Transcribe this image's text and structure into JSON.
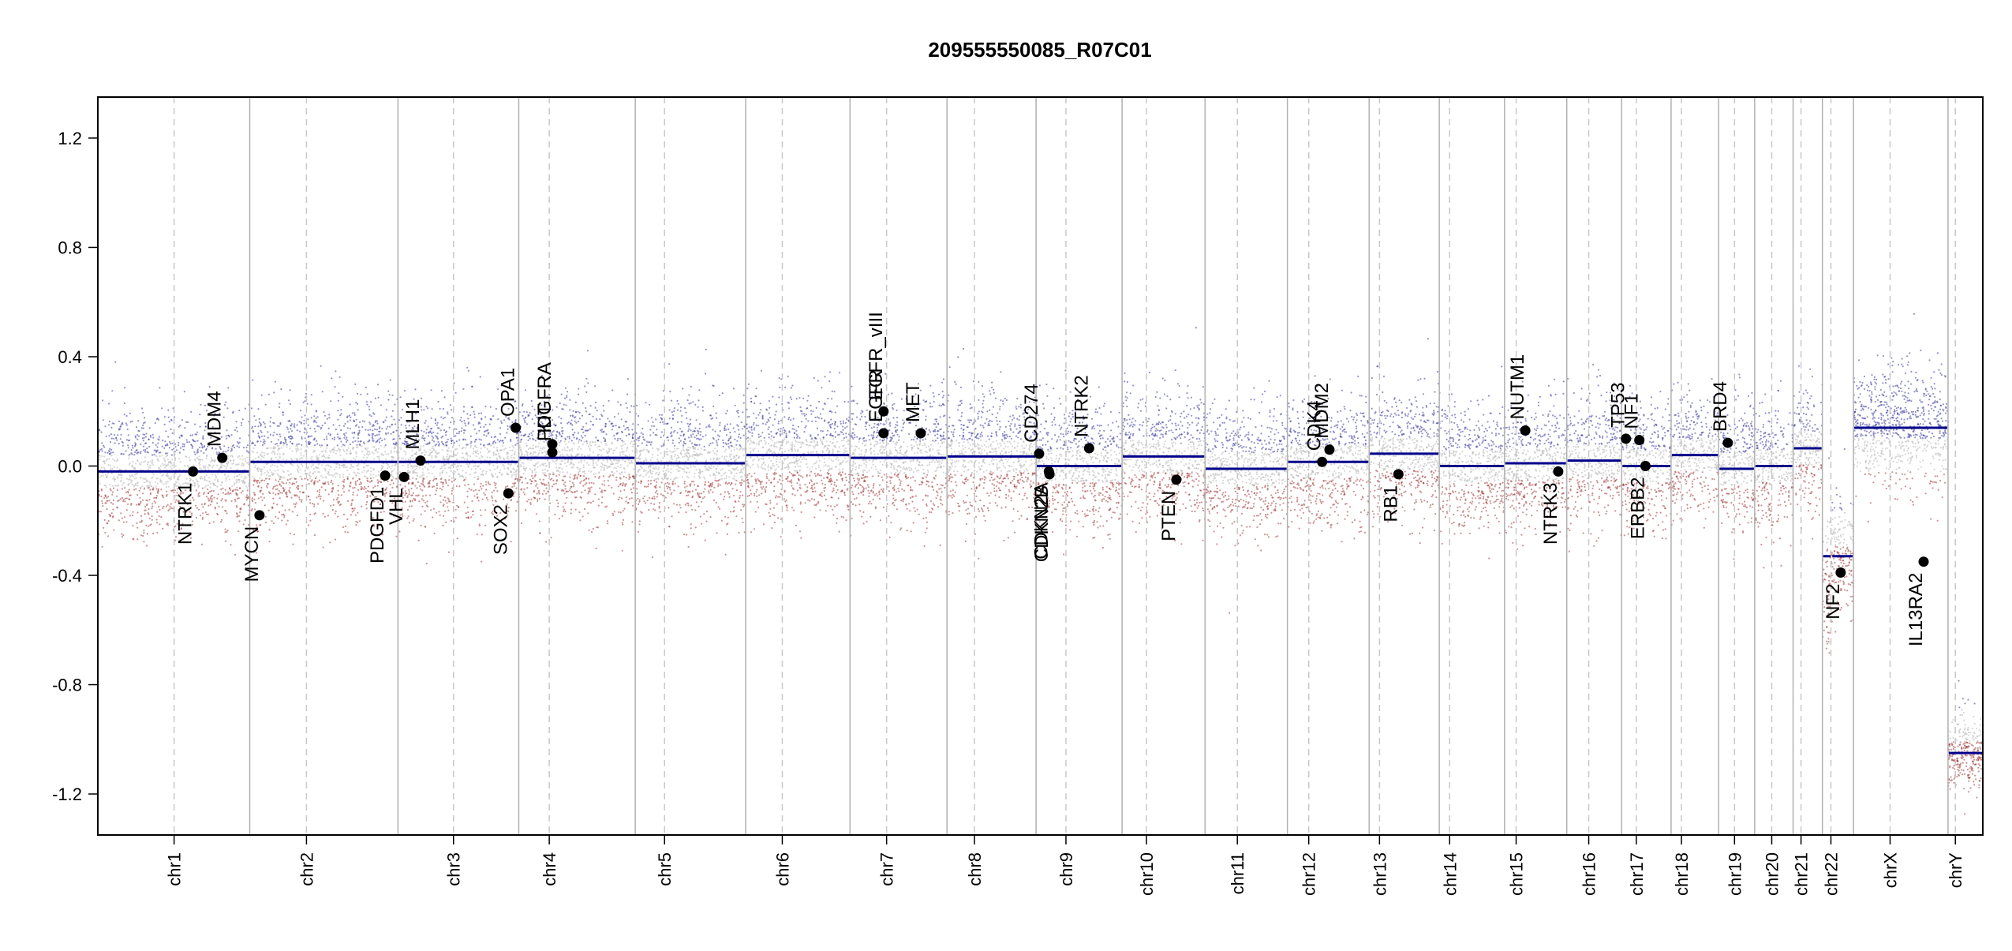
{
  "chart_data": {
    "type": "scatter",
    "title": "209555550085_R07C01",
    "xlabel": "",
    "ylabel": "",
    "ylim": [
      -1.35,
      1.35
    ],
    "y_ticks": [
      1.2,
      0.8,
      0.4,
      0.0,
      -0.4,
      -0.8,
      -1.2
    ],
    "y_tick_labels": [
      "1.2",
      "0.8",
      "0.4",
      "0.0",
      "-0.4",
      "-0.8",
      "-1.2"
    ],
    "chromosomes": [
      {
        "name": "chr1",
        "length": 249
      },
      {
        "name": "chr2",
        "length": 243
      },
      {
        "name": "chr3",
        "length": 198
      },
      {
        "name": "chr4",
        "length": 191
      },
      {
        "name": "chr5",
        "length": 181
      },
      {
        "name": "chr6",
        "length": 171
      },
      {
        "name": "chr7",
        "length": 159
      },
      {
        "name": "chr8",
        "length": 146
      },
      {
        "name": "chr9",
        "length": 141
      },
      {
        "name": "chr10",
        "length": 136
      },
      {
        "name": "chr11",
        "length": 135
      },
      {
        "name": "chr12",
        "length": 134
      },
      {
        "name": "chr13",
        "length": 115
      },
      {
        "name": "chr14",
        "length": 107
      },
      {
        "name": "chr15",
        "length": 102
      },
      {
        "name": "chr16",
        "length": 90
      },
      {
        "name": "chr17",
        "length": 81
      },
      {
        "name": "chr18",
        "length": 78
      },
      {
        "name": "chr19",
        "length": 59
      },
      {
        "name": "chr20",
        "length": 63
      },
      {
        "name": "chr21",
        "length": 48
      },
      {
        "name": "chr22",
        "length": 51
      },
      {
        "name": "chrX",
        "length": 155
      },
      {
        "name": "chrY",
        "length": 57
      }
    ],
    "centromeres": [
      {
        "chr": "chr1",
        "pos": 125
      },
      {
        "chr": "chr2",
        "pos": 93
      },
      {
        "chr": "chr3",
        "pos": 91
      },
      {
        "chr": "chr4",
        "pos": 50
      },
      {
        "chr": "chr5",
        "pos": 48
      },
      {
        "chr": "chr6",
        "pos": 60
      },
      {
        "chr": "chr7",
        "pos": 60
      },
      {
        "chr": "chr8",
        "pos": 45
      },
      {
        "chr": "chr9",
        "pos": 49
      },
      {
        "chr": "chr10",
        "pos": 40
      },
      {
        "chr": "chr11",
        "pos": 53
      },
      {
        "chr": "chr12",
        "pos": 35
      },
      {
        "chr": "chr13",
        "pos": 17
      },
      {
        "chr": "chr14",
        "pos": 17
      },
      {
        "chr": "chr15",
        "pos": 19
      },
      {
        "chr": "chr16",
        "pos": 36
      },
      {
        "chr": "chr17",
        "pos": 24
      },
      {
        "chr": "chr18",
        "pos": 17
      },
      {
        "chr": "chr19",
        "pos": 26
      },
      {
        "chr": "chr20",
        "pos": 28
      },
      {
        "chr": "chr21",
        "pos": 13
      },
      {
        "chr": "chr22",
        "pos": 14
      },
      {
        "chr": "chrX",
        "pos": 60
      },
      {
        "chr": "chrY",
        "pos": 12
      }
    ],
    "segments": [
      {
        "chr": "chr1",
        "start": 0,
        "end": 249,
        "value": -0.02
      },
      {
        "chr": "chr2",
        "start": 0,
        "end": 243,
        "value": 0.015
      },
      {
        "chr": "chr3",
        "start": 0,
        "end": 198,
        "value": 0.015
      },
      {
        "chr": "chr4",
        "start": 0,
        "end": 191,
        "value": 0.03
      },
      {
        "chr": "chr5",
        "start": 0,
        "end": 181,
        "value": 0.01
      },
      {
        "chr": "chr6",
        "start": 0,
        "end": 171,
        "value": 0.04
      },
      {
        "chr": "chr7",
        "start": 0,
        "end": 159,
        "value": 0.03
      },
      {
        "chr": "chr8",
        "start": 0,
        "end": 146,
        "value": 0.035
      },
      {
        "chr": "chr9",
        "start": 0,
        "end": 141,
        "value": 0.0
      },
      {
        "chr": "chr10",
        "start": 0,
        "end": 136,
        "value": 0.035
      },
      {
        "chr": "chr11",
        "start": 0,
        "end": 135,
        "value": -0.01
      },
      {
        "chr": "chr12",
        "start": 0,
        "end": 134,
        "value": 0.015
      },
      {
        "chr": "chr13",
        "start": 0,
        "end": 115,
        "value": 0.045
      },
      {
        "chr": "chr14",
        "start": 0,
        "end": 107,
        "value": 0.0
      },
      {
        "chr": "chr15",
        "start": 0,
        "end": 102,
        "value": 0.01
      },
      {
        "chr": "chr16",
        "start": 0,
        "end": 90,
        "value": 0.02
      },
      {
        "chr": "chr17",
        "start": 0,
        "end": 81,
        "value": 0.0
      },
      {
        "chr": "chr18",
        "start": 0,
        "end": 78,
        "value": 0.04
      },
      {
        "chr": "chr19",
        "start": 0,
        "end": 59,
        "value": -0.01
      },
      {
        "chr": "chr20",
        "start": 0,
        "end": 63,
        "value": 0.0
      },
      {
        "chr": "chr21",
        "start": 0,
        "end": 48,
        "value": 0.065
      },
      {
        "chr": "chr22",
        "start": 0,
        "end": 15,
        "value": -0.33
      },
      {
        "chr": "chr22",
        "start": 15,
        "end": 51,
        "value": -0.33
      },
      {
        "chr": "chrX",
        "start": 0,
        "end": 155,
        "value": 0.14
      },
      {
        "chr": "chrY",
        "start": 0,
        "end": 57,
        "value": -1.05
      }
    ],
    "genes": [
      {
        "name": "NTRK1",
        "chr": "chr1",
        "pos": 156,
        "value": -0.02,
        "label_side": "below"
      },
      {
        "name": "MDM4",
        "chr": "chr1",
        "pos": 204,
        "value": 0.03,
        "label_side": "above"
      },
      {
        "name": "MYCN",
        "chr": "chr2",
        "pos": 16,
        "value": -0.18,
        "label_side": "below"
      },
      {
        "name": "PDGFD1",
        "chr": "chr2",
        "pos": 222,
        "value": -0.035,
        "label_side": "below"
      },
      {
        "name": "VHL",
        "chr": "chr3",
        "pos": 10,
        "value": -0.04,
        "label_side": "below"
      },
      {
        "name": "MLH1",
        "chr": "chr3",
        "pos": 37,
        "value": 0.02,
        "label_side": "above"
      },
      {
        "name": "SOX2",
        "chr": "chr3",
        "pos": 181,
        "value": -0.1,
        "label_side": "below"
      },
      {
        "name": "OPA1",
        "chr": "chr3",
        "pos": 193,
        "value": 0.14,
        "label_side": "above"
      },
      {
        "name": "KIT",
        "chr": "chr4",
        "pos": 55,
        "value": 0.08,
        "label_side": "above"
      },
      {
        "name": "PDGFRA",
        "chr": "chr4",
        "pos": 55,
        "value": 0.05,
        "label_side": "above"
      },
      {
        "name": "EGFR",
        "chr": "chr7",
        "pos": 55,
        "value": 0.12,
        "label_side": "above"
      },
      {
        "name": "EGFR_vIII",
        "chr": "chr7",
        "pos": 55,
        "value": 0.2,
        "label_side": "above"
      },
      {
        "name": "MET",
        "chr": "chr7",
        "pos": 116,
        "value": 0.12,
        "label_side": "above"
      },
      {
        "name": "CD274",
        "chr": "chr9",
        "pos": 5,
        "value": 0.045,
        "label_side": "above"
      },
      {
        "name": "CDKN2A",
        "chr": "chr9",
        "pos": 21,
        "value": -0.02,
        "label_side": "below"
      },
      {
        "name": "CDKN2B",
        "chr": "chr9",
        "pos": 22,
        "value": -0.03,
        "label_side": "below"
      },
      {
        "name": "NTRK2",
        "chr": "chr9",
        "pos": 87,
        "value": 0.065,
        "label_side": "above"
      },
      {
        "name": "PTEN",
        "chr": "chr10",
        "pos": 89,
        "value": -0.05,
        "label_side": "below"
      },
      {
        "name": "CDK4",
        "chr": "chr12",
        "pos": 57,
        "value": 0.015,
        "label_side": "above"
      },
      {
        "name": "MDM2",
        "chr": "chr12",
        "pos": 69,
        "value": 0.06,
        "label_side": "above"
      },
      {
        "name": "RB1",
        "chr": "chr13",
        "pos": 48,
        "value": -0.03,
        "label_side": "below"
      },
      {
        "name": "NUTM1",
        "chr": "chr15",
        "pos": 34,
        "value": 0.13,
        "label_side": "above"
      },
      {
        "name": "NTRK3",
        "chr": "chr15",
        "pos": 88,
        "value": -0.02,
        "label_side": "below"
      },
      {
        "name": "TP53",
        "chr": "chr17",
        "pos": 7,
        "value": 0.1,
        "label_side": "above"
      },
      {
        "name": "NF1",
        "chr": "chr17",
        "pos": 29,
        "value": 0.095,
        "label_side": "above"
      },
      {
        "name": "ERBB2",
        "chr": "chr17",
        "pos": 39,
        "value": 0.0,
        "label_side": "below"
      },
      {
        "name": "BRD4",
        "chr": "chr19",
        "pos": 15,
        "value": 0.085,
        "label_side": "above"
      },
      {
        "name": "NF2",
        "chr": "chr22",
        "pos": 30,
        "value": -0.39,
        "label_side": "below"
      },
      {
        "name": "IL13RA2",
        "chr": "chrX",
        "pos": 115,
        "value": -0.35,
        "label_side": "below"
      }
    ],
    "colors": {
      "gain": "#3a3aa0",
      "loss": "#a03a3a",
      "neutral": "#b5b5b5",
      "segment": "#00008b",
      "gene_point": "#000000",
      "chrom_border": "#b0b0b0",
      "centromere": "#c8c8c8"
    },
    "grid": false
  }
}
